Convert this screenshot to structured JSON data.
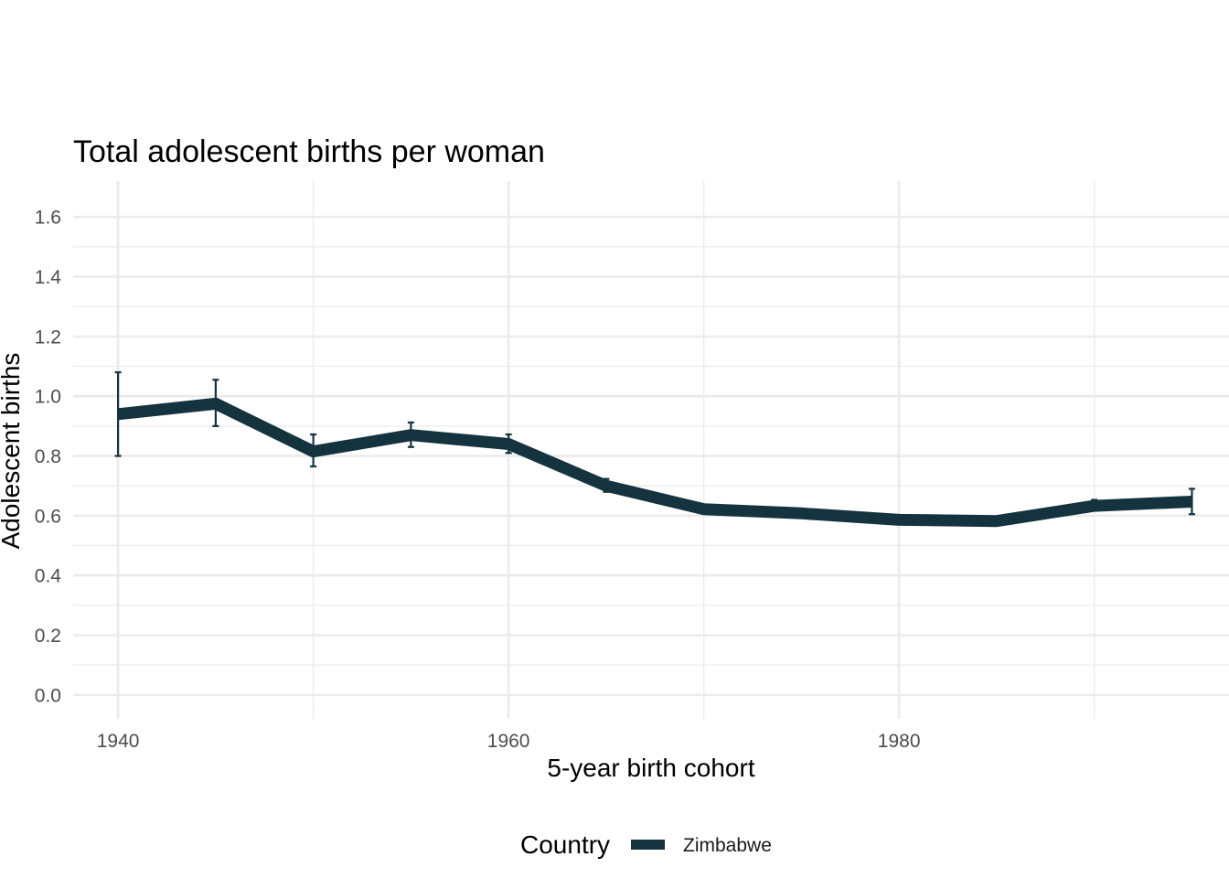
{
  "chart_data": {
    "type": "line",
    "title": "Total adolescent births per woman",
    "xlabel": "5-year birth cohort",
    "ylabel": "Adolescent births",
    "xlim": [
      1937.7,
      1996.9
    ],
    "ylim": [
      -0.08,
      1.72
    ],
    "x_ticks": [
      1940,
      1960,
      1980
    ],
    "x_tick_labels": [
      "1940",
      "1960",
      "1980"
    ],
    "x_minor_ticks": [
      1950,
      1970,
      1990
    ],
    "y_ticks": [
      0.0,
      0.2,
      0.4,
      0.6,
      0.8,
      1.0,
      1.2,
      1.4,
      1.6
    ],
    "y_tick_labels": [
      "0.0",
      "0.2",
      "0.4",
      "0.6",
      "0.8",
      "1.0",
      "1.2",
      "1.4",
      "1.6"
    ],
    "y_minor_ticks": [
      0.1,
      0.3,
      0.5,
      0.7,
      0.9,
      1.1,
      1.3,
      1.5
    ],
    "grid": true,
    "legend": {
      "title": "Country",
      "position": "bottom"
    },
    "series": [
      {
        "name": "Zimbabwe",
        "color": "#15333f",
        "x": [
          1940,
          1945,
          1950,
          1955,
          1960,
          1965,
          1970,
          1975,
          1980,
          1985,
          1990,
          1995
        ],
        "values": [
          0.94,
          0.975,
          0.815,
          0.87,
          0.84,
          0.7,
          0.622,
          0.608,
          0.586,
          0.582,
          0.633,
          0.647
        ],
        "error_low": [
          0.8,
          0.9,
          0.765,
          0.83,
          0.81,
          0.68,
          0.612,
          0.598,
          0.578,
          0.574,
          0.62,
          0.605
        ],
        "error_high": [
          1.08,
          1.055,
          0.872,
          0.912,
          0.872,
          0.723,
          0.637,
          0.622,
          0.596,
          0.591,
          0.653,
          0.69
        ]
      }
    ]
  }
}
